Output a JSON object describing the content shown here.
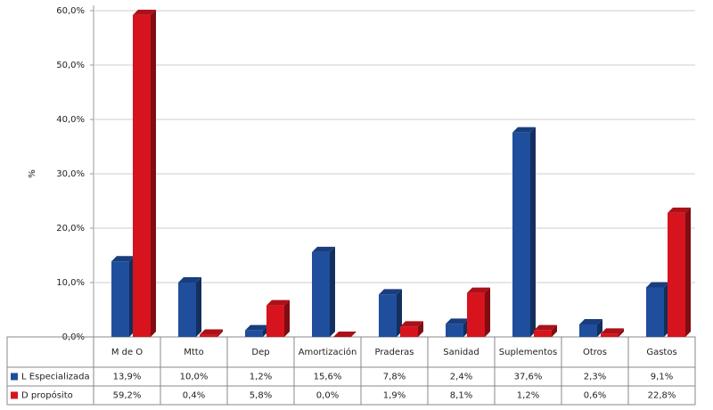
{
  "chart_data": {
    "type": "bar",
    "y_label": "%",
    "categories": [
      "M de O",
      "Mtto",
      "Dep",
      "Amortización",
      "Praderas",
      "Sanidad",
      "Suplementos",
      "Otros",
      "Gastos"
    ],
    "series": [
      {
        "name": "L Especializada",
        "color": "#1f4e9c",
        "values": [
          13.9,
          10.0,
          1.2,
          15.6,
          7.8,
          2.4,
          37.6,
          2.3,
          9.1
        ],
        "value_labels": [
          "13,9%",
          "10,0%",
          "1,2%",
          "15,6%",
          "7,8%",
          "2,4%",
          "37,6%",
          "2,3%",
          "9,1%"
        ]
      },
      {
        "name": "D propósito",
        "color": "#d7141e",
        "values": [
          59.2,
          0.4,
          5.8,
          0.0,
          1.9,
          8.1,
          1.2,
          0.6,
          22.8
        ],
        "value_labels": [
          "59,2%",
          "0,4%",
          "5,8%",
          "0,0%",
          "1,9%",
          "8,1%",
          "1,2%",
          "0,6%",
          "22,8%"
        ]
      }
    ],
    "ylim": [
      0,
      60
    ],
    "yticks": [
      {
        "value": 0,
        "label": "0,0%"
      },
      {
        "value": 10,
        "label": "10,0%"
      },
      {
        "value": 20,
        "label": "20,0%"
      },
      {
        "value": 30,
        "label": "30,0%"
      },
      {
        "value": 40,
        "label": "40,0%"
      },
      {
        "value": 50,
        "label": "50,0%"
      },
      {
        "value": 60,
        "label": "60,0%"
      }
    ],
    "grid": true
  }
}
